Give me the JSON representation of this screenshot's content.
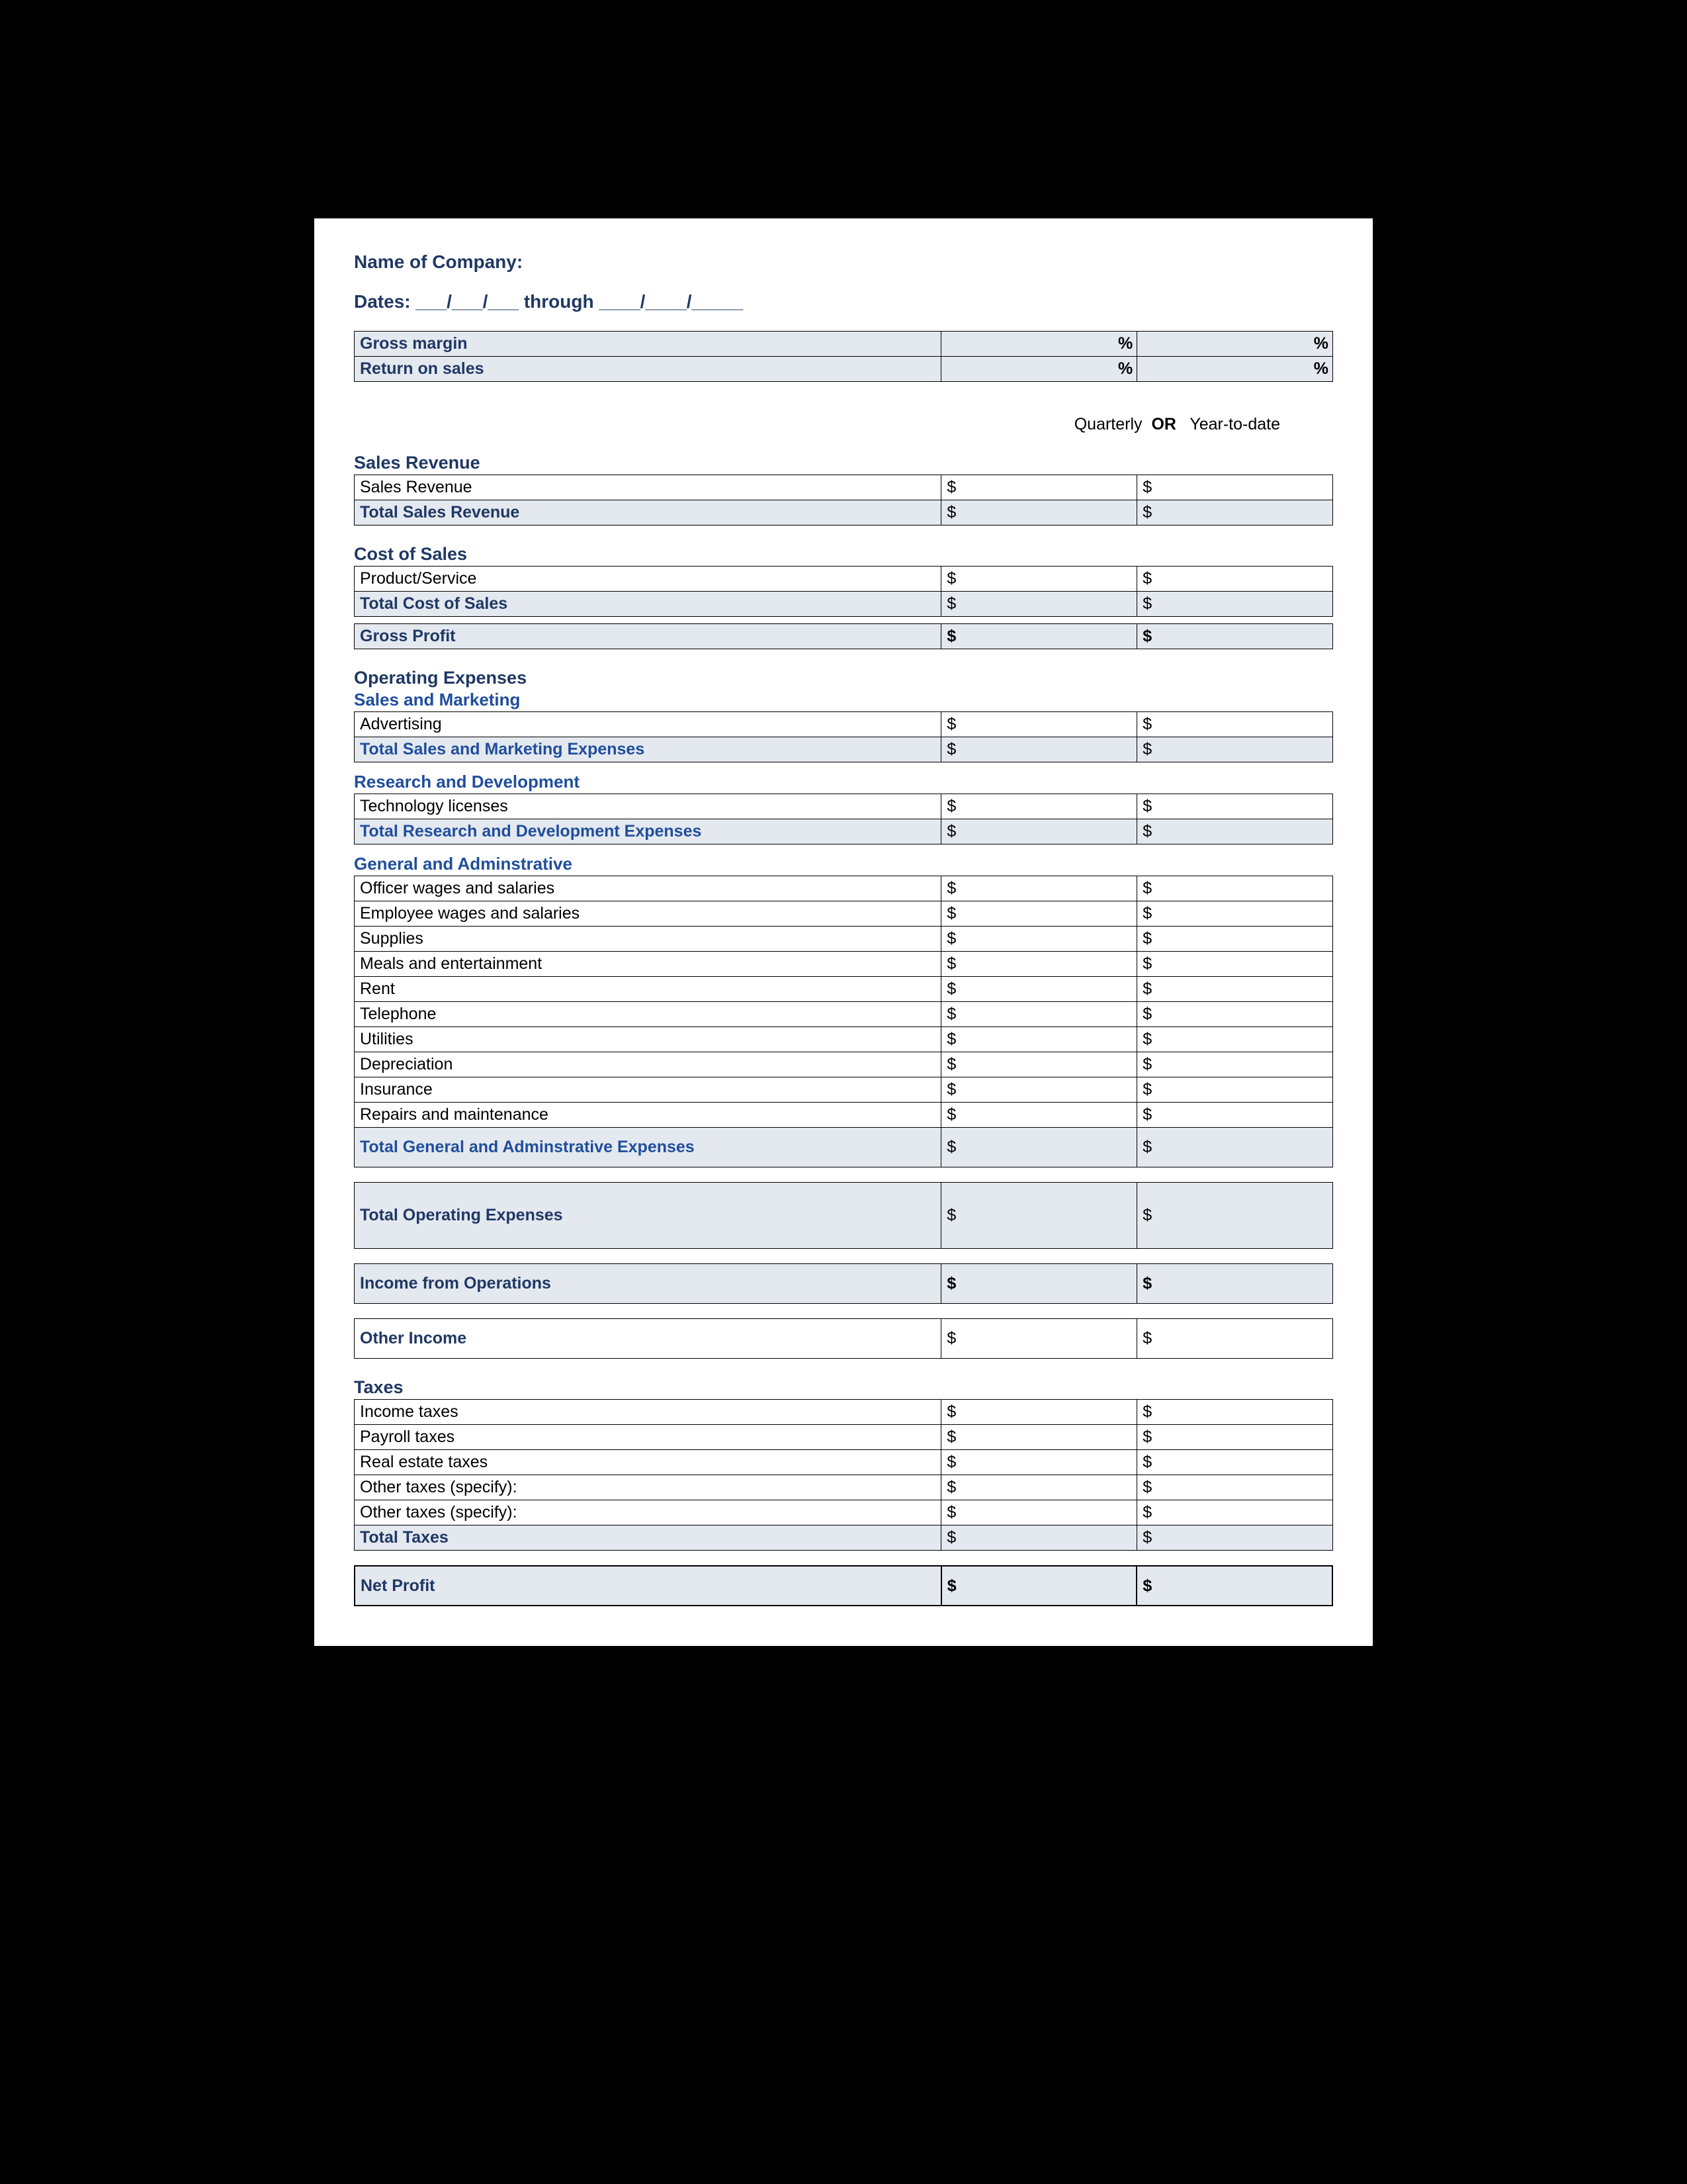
{
  "colors": {
    "page_bg": "#ffffff",
    "outer_bg": "#000000",
    "shade": "#e4e8ef",
    "border": "#000000",
    "navy": "#1f3864",
    "blue": "#1f4e9c"
  },
  "header": {
    "company_label": "Name of Company:",
    "dates_label": "Dates:   ___/___/___  through  ____/____/_____"
  },
  "ratios": {
    "rows": [
      {
        "label": "Gross margin",
        "q": "%",
        "y": "%"
      },
      {
        "label": "Return on sales",
        "q": "%",
        "y": "%"
      }
    ]
  },
  "period_header": {
    "q": "Quarterly",
    "or": "OR",
    "y": "Year-to-date"
  },
  "currency": "$",
  "sales_revenue": {
    "title": "Sales Revenue",
    "rows": [
      {
        "label": "Sales Revenue"
      }
    ],
    "total_label": "Total Sales Revenue"
  },
  "cost_of_sales": {
    "title": "Cost of Sales",
    "rows": [
      {
        "label": "Product/Service"
      }
    ],
    "total_label": "Total Cost of Sales"
  },
  "gross_profit": {
    "label": "Gross Profit"
  },
  "operating_expenses": {
    "title": "Operating Expenses",
    "sales_marketing": {
      "title": "Sales and Marketing",
      "rows": [
        {
          "label": "Advertising"
        }
      ],
      "total_label": "Total Sales and Marketing Expenses"
    },
    "r_and_d": {
      "title": "Research and Development",
      "rows": [
        {
          "label": "Technology licenses"
        }
      ],
      "total_label": "Total Research and Development Expenses"
    },
    "g_and_a": {
      "title": "General and Adminstrative",
      "rows": [
        {
          "label": "Officer wages and salaries"
        },
        {
          "label": "Employee wages and salaries"
        },
        {
          "label": "Supplies"
        },
        {
          "label": "Meals and entertainment"
        },
        {
          "label": "Rent"
        },
        {
          "label": "Telephone"
        },
        {
          "label": "Utilities"
        },
        {
          "label": "Depreciation"
        },
        {
          "label": "Insurance"
        },
        {
          "label": "Repairs and maintenance"
        }
      ],
      "total_label": "Total General and Adminstrative Expenses"
    },
    "total_label": "Total Operating Expenses"
  },
  "income_from_ops": {
    "label": "Income from Operations"
  },
  "other_income": {
    "label": "Other Income"
  },
  "taxes": {
    "title": "Taxes",
    "rows": [
      {
        "label": "Income taxes"
      },
      {
        "label": "Payroll taxes"
      },
      {
        "label": "Real estate taxes"
      },
      {
        "label": "Other taxes (specify):"
      },
      {
        "label": "Other taxes (specify):"
      }
    ],
    "total_label": "Total Taxes"
  },
  "net_profit": {
    "label": "Net Profit"
  }
}
